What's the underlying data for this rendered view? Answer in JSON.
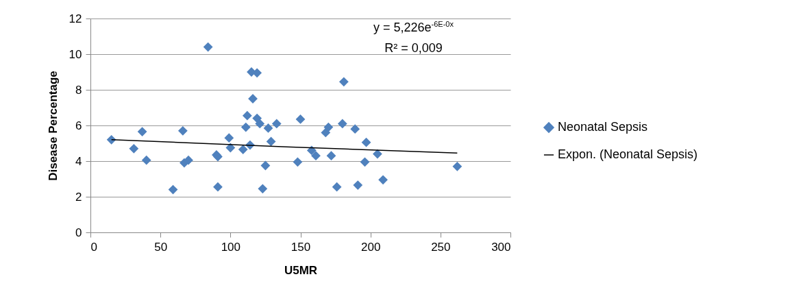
{
  "chart_data": {
    "type": "scatter",
    "xlabel": "U5MR",
    "ylabel": "Disease Percentage",
    "annotations": [
      "y = 5,226e$^{-6E-0x}$",
      "R² = 0,009"
    ],
    "series": [
      {
        "name": "Neonatal Sepsis",
        "marker": "diamond",
        "color": "#4f81bd",
        "x": [
          15,
          31,
          37,
          40,
          59,
          66,
          67,
          70,
          84,
          90,
          91,
          91,
          99,
          100,
          109,
          111,
          112,
          114,
          115,
          116,
          119,
          119,
          121,
          123,
          125,
          127,
          129,
          133,
          148,
          150,
          158,
          161,
          168,
          170,
          172,
          176,
          180,
          181,
          189,
          191,
          196,
          197,
          205,
          209,
          262
        ],
        "values": [
          5.2,
          4.7,
          5.65,
          4.05,
          2.4,
          5.7,
          3.9,
          4.05,
          10.4,
          4.35,
          4.25,
          2.55,
          5.3,
          4.75,
          4.65,
          5.9,
          6.55,
          4.9,
          9.0,
          7.5,
          8.95,
          6.4,
          6.1,
          2.45,
          3.75,
          5.85,
          5.1,
          6.1,
          3.95,
          6.35,
          4.6,
          4.3,
          5.6,
          5.9,
          4.3,
          2.55,
          6.1,
          8.45,
          5.8,
          2.65,
          3.95,
          5.05,
          4.4,
          2.95,
          3.7
        ]
      },
      {
        "name": "Expon. (Neonatal Sepsis)",
        "type": "line",
        "marker": "none",
        "color": "#000000",
        "x": [
          15,
          140,
          262
        ],
        "values": [
          5.2,
          4.8,
          4.45
        ]
      }
    ],
    "xlim": [
      0,
      300
    ],
    "xticks": [
      0,
      50,
      100,
      150,
      200,
      250,
      300
    ],
    "ylim": [
      0,
      12
    ],
    "yticks": [
      0,
      2,
      4,
      6,
      8,
      10,
      12
    ],
    "grid": "y",
    "legend": "right",
    "line_style": "solid"
  }
}
